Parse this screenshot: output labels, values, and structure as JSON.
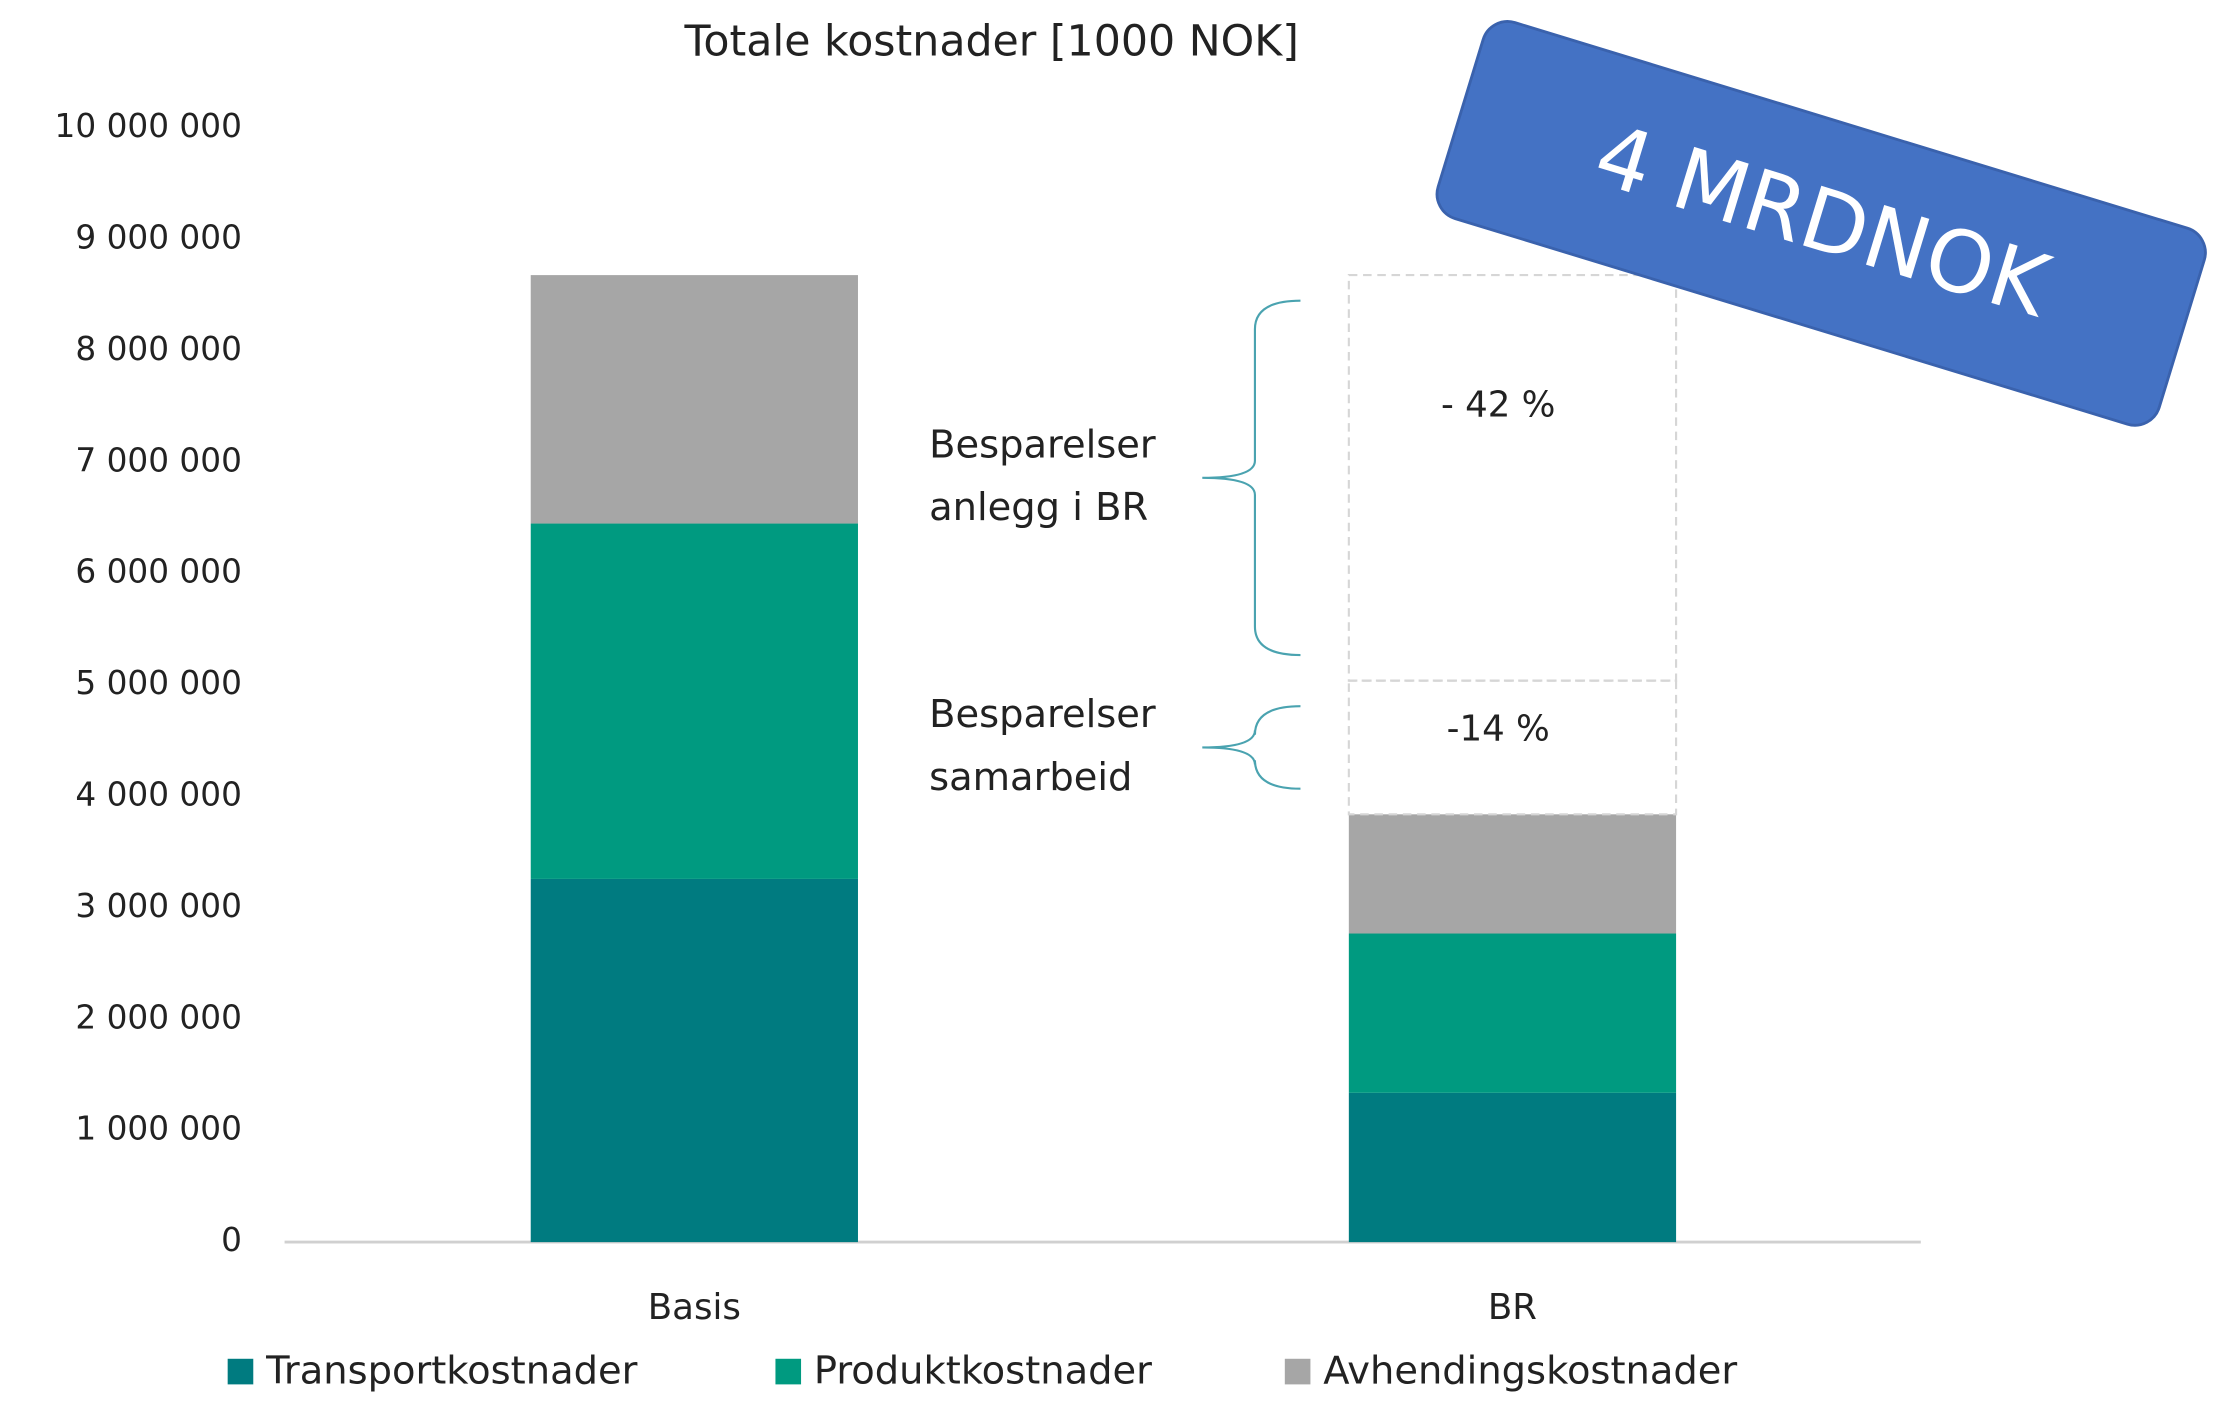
{
  "chart_data": {
    "type": "stacked_bar",
    "title": "Totale kostnader [1000 NOK]",
    "categories": [
      "Basis",
      "BR"
    ],
    "series": [
      {
        "name": "Transportkostnader",
        "color": "#007b80",
        "values": [
          3260000,
          1340000
        ]
      },
      {
        "name": "Produktkostnader",
        "color": "#009a80",
        "values": [
          3190000,
          1430000
        ]
      },
      {
        "name": "Avhendingskostnader",
        "color": "#a6a6a6",
        "values": [
          2230000,
          1070000
        ]
      }
    ],
    "savings": [
      {
        "name": "Besparelser samarbeid",
        "values": [
          null,
          1200000
        ],
        "label": "-14 %"
      },
      {
        "name": "Besparelser anlegg i BR",
        "values": [
          null,
          3640000
        ],
        "label": "- 42 %"
      }
    ],
    "badge": "4 MRDNOK",
    "badge_color": "#4472c4",
    "ylim": [
      0,
      10000000
    ],
    "yticks": [
      0,
      {
        "value": 1000000,
        "label": "1 000 000"
      },
      {
        "value": 2000000,
        "label": "2 000 000"
      },
      {
        "value": 3000000,
        "label": "3 000 000"
      },
      {
        "value": 4000000,
        "label": "4 000 000"
      },
      {
        "value": 5000000,
        "label": "5 000 000"
      },
      {
        "value": 6000000,
        "label": "6 000 000"
      },
      {
        "value": 7000000,
        "label": "7 000 000"
      },
      {
        "value": 8000000,
        "label": "8 000 000"
      },
      {
        "value": 9000000,
        "label": "9 000 000"
      },
      {
        "value": 10000000,
        "label": "10 000 000"
      }
    ],
    "grid": false,
    "legend": "bottom"
  }
}
